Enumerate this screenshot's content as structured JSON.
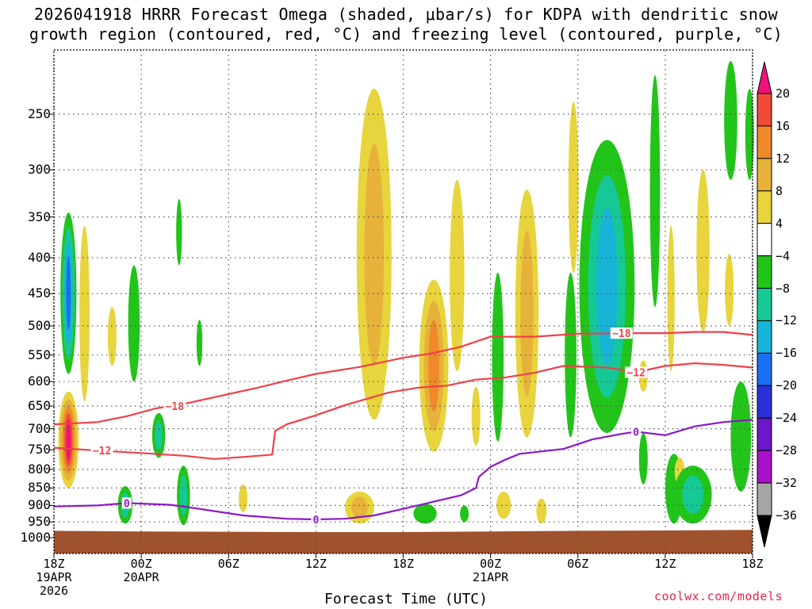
{
  "title": {
    "line1": "2026041918 HRRR Forecast Omega (shaded, μbar/s) for KDPA with dendritic snow",
    "line2": "growth region (contoured, red, °C) and freezing level (contoured, purple, °C)"
  },
  "axes": {
    "xlabel": "Forecast Time (UTC)",
    "credit": "coolwx.com/models",
    "y_ticks": [
      250,
      300,
      350,
      400,
      450,
      500,
      550,
      600,
      650,
      700,
      750,
      800,
      850,
      900,
      950,
      1000
    ],
    "x_ticks": [
      {
        "hour": 0,
        "label1": "18Z",
        "label2": "19APR",
        "label3": "2026"
      },
      {
        "hour": 6,
        "label1": "00Z",
        "label2": "20APR",
        "label3": ""
      },
      {
        "hour": 12,
        "label1": "06Z",
        "label2": "",
        "label3": ""
      },
      {
        "hour": 18,
        "label1": "12Z",
        "label2": "",
        "label3": ""
      },
      {
        "hour": 24,
        "label1": "18Z",
        "label2": "",
        "label3": ""
      },
      {
        "hour": 30,
        "label1": "00Z",
        "label2": "21APR",
        "label3": ""
      },
      {
        "hour": 36,
        "label1": "06Z",
        "label2": "",
        "label3": ""
      },
      {
        "hour": 42,
        "label1": "12Z",
        "label2": "",
        "label3": ""
      },
      {
        "hour": 48,
        "label1": "18Z",
        "label2": "",
        "label3": ""
      }
    ],
    "hour_range": [
      0,
      48
    ],
    "pressure_range": [
      200,
      1020
    ],
    "grid": true
  },
  "colorbar": {
    "labels": [
      "20",
      "16",
      "12",
      "8",
      "4",
      "−4",
      "−8",
      "−12",
      "−16",
      "−20",
      "−24",
      "−28",
      "−32",
      "−36"
    ],
    "colors": [
      "#f0127a",
      "#f04a38",
      "#ee8a2a",
      "#e6b23a",
      "#e8d43c",
      "#ffffff",
      "#22c41a",
      "#16c896",
      "#18b4d8",
      "#1a6ef0",
      "#2832d8",
      "#6a18c8",
      "#a812c8",
      "#a6a6a6",
      "#000000"
    ]
  },
  "chart_data": {
    "type": "heatmap",
    "x_units": "forecast hour from 2026-04-19 18Z",
    "y_units": "hPa",
    "omega_regions": [
      {
        "hour": 1.0,
        "p": [
          345,
          585
        ],
        "hw": 0.55,
        "levels": [
          -8,
          -12,
          -16,
          -20
        ]
      },
      {
        "hour": 1.0,
        "p": [
          620,
          850
        ],
        "hw": 0.7,
        "levels": [
          4,
          8,
          12,
          16,
          20
        ]
      },
      {
        "hour": 2.1,
        "p": [
          360,
          640
        ],
        "hw": 0.35,
        "levels": [
          4
        ]
      },
      {
        "hour": 4.0,
        "p": [
          470,
          570
        ],
        "hw": 0.3,
        "levels": [
          4
        ]
      },
      {
        "hour": 5.5,
        "p": [
          410,
          600
        ],
        "hw": 0.4,
        "levels": [
          -8
        ]
      },
      {
        "hour": 4.9,
        "p": [
          845,
          955
        ],
        "hw": 0.5,
        "levels": [
          -8,
          -12
        ]
      },
      {
        "hour": 7.2,
        "p": [
          665,
          770
        ],
        "hw": 0.45,
        "levels": [
          -8,
          -12
        ]
      },
      {
        "hour": 8.6,
        "p": [
          330,
          410
        ],
        "hw": 0.2,
        "levels": [
          -8
        ]
      },
      {
        "hour": 8.9,
        "p": [
          790,
          960
        ],
        "hw": 0.45,
        "levels": [
          -8,
          -12
        ]
      },
      {
        "hour": 10.0,
        "p": [
          490,
          570
        ],
        "hw": 0.2,
        "levels": [
          -8
        ]
      },
      {
        "hour": 13.0,
        "p": [
          840,
          920
        ],
        "hw": 0.3,
        "levels": [
          4
        ]
      },
      {
        "hour": 22.0,
        "p": [
          230,
          680
        ],
        "hw": 1.2,
        "levels": [
          4,
          8
        ]
      },
      {
        "hour": 21.0,
        "p": [
          860,
          955
        ],
        "hw": 1.0,
        "levels": [
          4,
          8
        ]
      },
      {
        "hour": 26.1,
        "p": [
          430,
          755
        ],
        "hw": 1.0,
        "levels": [
          4,
          8,
          12
        ]
      },
      {
        "hour": 25.5,
        "p": [
          895,
          955
        ],
        "hw": 0.8,
        "levels": [
          -8
        ]
      },
      {
        "hour": 27.7,
        "p": [
          310,
          580
        ],
        "hw": 0.5,
        "levels": [
          4
        ]
      },
      {
        "hour": 28.2,
        "p": [
          900,
          950
        ],
        "hw": 0.3,
        "levels": [
          -8
        ]
      },
      {
        "hour": 29.0,
        "p": [
          610,
          740
        ],
        "hw": 0.3,
        "levels": [
          4
        ]
      },
      {
        "hour": 30.5,
        "p": [
          420,
          730
        ],
        "hw": 0.4,
        "levels": [
          -8
        ]
      },
      {
        "hour": 30.9,
        "p": [
          860,
          940
        ],
        "hw": 0.5,
        "levels": [
          4
        ]
      },
      {
        "hour": 32.5,
        "p": [
          320,
          720
        ],
        "hw": 0.8,
        "levels": [
          4,
          8
        ]
      },
      {
        "hour": 33.5,
        "p": [
          880,
          955
        ],
        "hw": 0.35,
        "levels": [
          4
        ]
      },
      {
        "hour": 35.7,
        "p": [
          240,
          420
        ],
        "hw": 0.35,
        "levels": [
          4
        ]
      },
      {
        "hour": 35.5,
        "p": [
          420,
          720
        ],
        "hw": 0.4,
        "levels": [
          -8
        ]
      },
      {
        "hour": 38.0,
        "p": [
          272,
          710
        ],
        "hw": 1.9,
        "levels": [
          -8,
          -12,
          -16
        ]
      },
      {
        "hour": 40.5,
        "p": [
          560,
          620
        ],
        "hw": 0.3,
        "levels": [
          4
        ]
      },
      {
        "hour": 40.5,
        "p": [
          710,
          840
        ],
        "hw": 0.3,
        "levels": [
          -8
        ]
      },
      {
        "hour": 41.3,
        "p": [
          220,
          470
        ],
        "hw": 0.35,
        "levels": [
          -8
        ]
      },
      {
        "hour": 42.4,
        "p": [
          360,
          580
        ],
        "hw": 0.25,
        "levels": [
          4
        ]
      },
      {
        "hour": 42.6,
        "p": [
          760,
          955
        ],
        "hw": 0.6,
        "levels": [
          -8
        ]
      },
      {
        "hour": 43.0,
        "p": [
          770,
          845
        ],
        "hw": 0.35,
        "levels": [
          4
        ]
      },
      {
        "hour": 43.9,
        "p": [
          790,
          955
        ],
        "hw": 1.3,
        "levels": [
          -8,
          -12
        ]
      },
      {
        "hour": 44.6,
        "p": [
          300,
          510
        ],
        "hw": 0.45,
        "levels": [
          4
        ]
      },
      {
        "hour": 46.4,
        "p": [
          395,
          500
        ],
        "hw": 0.3,
        "levels": [
          4
        ]
      },
      {
        "hour": 46.5,
        "p": [
          210,
          310
        ],
        "hw": 0.45,
        "levels": [
          -8
        ]
      },
      {
        "hour": 47.2,
        "p": [
          600,
          860
        ],
        "hw": 0.7,
        "levels": [
          -8
        ]
      },
      {
        "hour": 47.8,
        "p": [
          230,
          310
        ],
        "hw": 0.3,
        "levels": [
          -8
        ]
      }
    ],
    "contours": [
      {
        "name": "-18 °C",
        "label": "−18",
        "color": "#f0404a",
        "label_at": [
          [
            8.3,
            650
          ],
          [
            39.0,
            512
          ]
        ],
        "points": [
          [
            0,
            690
          ],
          [
            3,
            685
          ],
          [
            5,
            672
          ],
          [
            7,
            655
          ],
          [
            9,
            645
          ],
          [
            12,
            625
          ],
          [
            14,
            612
          ],
          [
            16,
            598
          ],
          [
            18,
            585
          ],
          [
            21,
            572
          ],
          [
            24,
            555
          ],
          [
            26,
            547
          ],
          [
            28,
            535
          ],
          [
            30,
            518
          ],
          [
            33,
            518
          ],
          [
            36,
            513
          ],
          [
            39,
            512
          ],
          [
            42,
            512
          ],
          [
            44,
            510
          ],
          [
            46,
            510
          ],
          [
            48,
            515
          ]
        ]
      },
      {
        "name": "-12 °C",
        "label": "−12",
        "color": "#f0404a",
        "label_at": [
          [
            3.3,
            752
          ],
          [
            40.0,
            582
          ]
        ],
        "points": [
          [
            0,
            745
          ],
          [
            3,
            752
          ],
          [
            6,
            758
          ],
          [
            9,
            765
          ],
          [
            11,
            773
          ],
          [
            13,
            768
          ],
          [
            15,
            762
          ],
          [
            15.2,
            705
          ],
          [
            16,
            690
          ],
          [
            18,
            670
          ],
          [
            20,
            648
          ],
          [
            23,
            622
          ],
          [
            25,
            612
          ],
          [
            27,
            608
          ],
          [
            29,
            596
          ],
          [
            31,
            592
          ],
          [
            33,
            583
          ],
          [
            35,
            570
          ],
          [
            38,
            573
          ],
          [
            40,
            582
          ],
          [
            42,
            570
          ],
          [
            44,
            565
          ],
          [
            46,
            568
          ],
          [
            48,
            573
          ]
        ]
      },
      {
        "name": "0 °C",
        "label": "0",
        "color": "#8c18c8",
        "label_at": [
          [
            5.0,
            893
          ],
          [
            18.0,
            942
          ],
          [
            40.0,
            707
          ]
        ],
        "points": [
          [
            0,
            903
          ],
          [
            3,
            900
          ],
          [
            5,
            893
          ],
          [
            8,
            898
          ],
          [
            10,
            910
          ],
          [
            13,
            930
          ],
          [
            16,
            940
          ],
          [
            18,
            942
          ],
          [
            20,
            940
          ],
          [
            22,
            930
          ],
          [
            24,
            910
          ],
          [
            26,
            890
          ],
          [
            28,
            870
          ],
          [
            29,
            850
          ],
          [
            29.2,
            820
          ],
          [
            30,
            793
          ],
          [
            31,
            775
          ],
          [
            32,
            760
          ],
          [
            35,
            748
          ],
          [
            37,
            725
          ],
          [
            39,
            712
          ],
          [
            40,
            707
          ],
          [
            42,
            715
          ],
          [
            44,
            695
          ],
          [
            46,
            685
          ],
          [
            48,
            680
          ]
        ]
      }
    ],
    "surface_pressure": [
      [
        0,
        978
      ],
      [
        6,
        980
      ],
      [
        12,
        981
      ],
      [
        18,
        982
      ],
      [
        24,
        982
      ],
      [
        30,
        980
      ],
      [
        36,
        978
      ],
      [
        42,
        977
      ],
      [
        48,
        975
      ]
    ]
  }
}
